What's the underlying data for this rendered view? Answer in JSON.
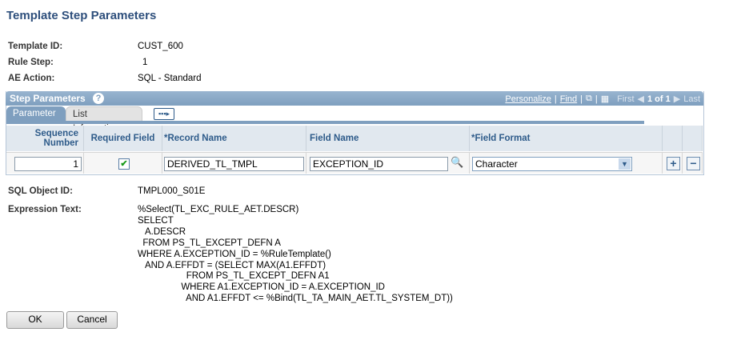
{
  "page": {
    "title": "Template Step Parameters"
  },
  "fields": {
    "template_id": {
      "label": "Template ID:",
      "value": "CUST_600"
    },
    "rule_step": {
      "label": "Rule Step:",
      "value": "1"
    },
    "ae_action": {
      "label": "AE Action:",
      "value": "SQL - Standard"
    },
    "sql_object_id": {
      "label": "SQL Object ID:",
      "value": "TMPL000_S01E"
    },
    "expression_text": {
      "label": "Expression Text:",
      "value": "%Select(TL_EXC_RULE_AET.DESCR)\nSELECT\n   A.DESCR\n  FROM PS_TL_EXCEPT_DEFN A\nWHERE A.EXCEPTION_ID = %RuleTemplate()\n   AND A.EFFDT = (SELECT MAX(A1.EFFDT)\n                   FROM PS_TL_EXCEPT_DEFN A1\n                 WHERE A1.EXCEPTION_ID = A.EXCEPTION_ID\n                   AND A1.EFFDT <= %Bind(TL_TA_MAIN_AET.TL_SYSTEM_DT))"
    }
  },
  "grid": {
    "title": "Step Parameters",
    "help": "?",
    "nav": {
      "personalize": "Personalize",
      "find": "Find",
      "first": "First",
      "count": "1 of 1",
      "last": "Last"
    },
    "tabs": [
      {
        "label": "Parameter",
        "active": true
      },
      {
        "label": "List Information",
        "active": false
      }
    ],
    "columns": [
      "Sequence Number",
      "Required Field",
      "*Record Name",
      "Field Name",
      "*Field Format"
    ],
    "rows": [
      {
        "sequence": "1",
        "required": true,
        "record": "DERIVED_TL_TMPL",
        "field": "EXCEPTION_ID",
        "format": "Character"
      }
    ]
  },
  "buttons": {
    "ok": "OK",
    "cancel": "Cancel"
  },
  "colors": {
    "accent": "#7f9fbf",
    "title": "#2e4f7c",
    "header_text": "#2e5b8a"
  }
}
